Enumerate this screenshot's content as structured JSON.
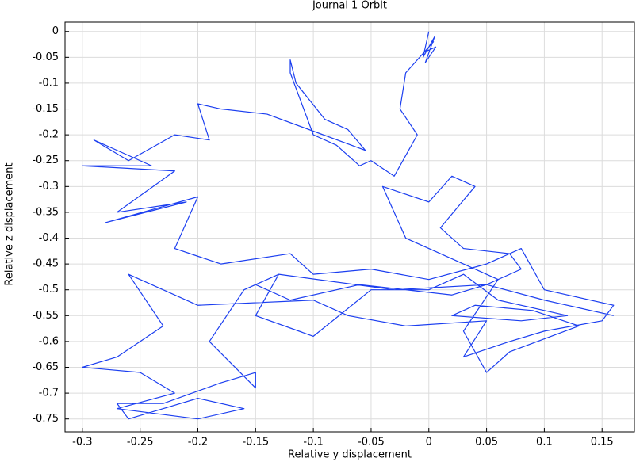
{
  "chart_data": {
    "type": "line",
    "title": "Journal 1 Orbit",
    "x_label": "Relative y displacement",
    "y_label": "Relative z displacement",
    "color": "#1c3ff0",
    "grid": true,
    "xlim": [
      -0.315,
      0.178
    ],
    "ylim": [
      -0.775,
      0.018
    ],
    "xticks": [
      -0.3,
      -0.25,
      -0.2,
      -0.15,
      -0.1,
      -0.05,
      0,
      0.05,
      0.1,
      0.15
    ],
    "yticks": [
      0,
      -0.05,
      -0.1,
      -0.15,
      -0.2,
      -0.25,
      -0.3,
      -0.35,
      -0.4,
      -0.45,
      -0.5,
      -0.55,
      -0.6,
      -0.65,
      -0.7,
      -0.75
    ],
    "x": [
      0,
      -0.005,
      0.005,
      -0.003,
      0.006,
      -0.004,
      0.004,
      -0.02,
      -0.025,
      -0.01,
      -0.03,
      -0.05,
      -0.06,
      -0.08,
      -0.1,
      -0.12,
      -0.12,
      -0.115,
      -0.09,
      -0.07,
      -0.055,
      -0.14,
      -0.18,
      -0.2,
      -0.19,
      -0.22,
      -0.26,
      -0.29,
      -0.24,
      -0.3,
      -0.22,
      -0.27,
      -0.21,
      -0.28,
      -0.2,
      -0.22,
      -0.18,
      -0.12,
      -0.1,
      -0.05,
      0,
      0.05,
      0.08,
      0.1,
      0.16,
      0.15,
      0.1,
      0.07,
      0.03,
      0.05,
      -0.02,
      -0.07,
      -0.1,
      -0.2,
      -0.26,
      -0.23,
      -0.27,
      -0.3,
      -0.25,
      -0.22,
      -0.27,
      -0.2,
      -0.16,
      -0.2,
      -0.26,
      -0.27,
      -0.23,
      -0.18,
      -0.15,
      -0.15,
      -0.19,
      -0.16,
      -0.13,
      -0.15,
      -0.1,
      -0.05,
      0,
      0.03,
      0.06,
      0.12,
      0.08,
      0.02,
      0.04,
      0.09,
      0.13,
      0.07,
      0.05,
      0.03,
      0.06,
      0.02,
      -0.02,
      -0.04,
      0,
      0.02,
      0.04,
      0.01,
      0.03,
      0.07,
      0.08,
      0.05,
      -0.03,
      -0.13,
      -0.15,
      -0.12,
      -0.06,
      0.02,
      0.05,
      0.1,
      0.16
    ],
    "values": [
      0,
      -0.05,
      -0.01,
      -0.06,
      -0.03,
      -0.04,
      -0.02,
      -0.08,
      -0.15,
      -0.2,
      -0.28,
      -0.25,
      -0.26,
      -0.22,
      -0.2,
      -0.08,
      -0.055,
      -0.1,
      -0.17,
      -0.19,
      -0.23,
      -0.16,
      -0.15,
      -0.14,
      -0.21,
      -0.2,
      -0.25,
      -0.21,
      -0.26,
      -0.26,
      -0.27,
      -0.35,
      -0.33,
      -0.37,
      -0.32,
      -0.42,
      -0.45,
      -0.43,
      -0.47,
      -0.46,
      -0.48,
      -0.45,
      -0.42,
      -0.5,
      -0.53,
      -0.56,
      -0.58,
      -0.6,
      -0.63,
      -0.56,
      -0.57,
      -0.55,
      -0.52,
      -0.53,
      -0.47,
      -0.57,
      -0.63,
      -0.65,
      -0.66,
      -0.7,
      -0.73,
      -0.75,
      -0.73,
      -0.71,
      -0.75,
      -0.72,
      -0.72,
      -0.68,
      -0.66,
      -0.69,
      -0.6,
      -0.5,
      -0.47,
      -0.55,
      -0.59,
      -0.5,
      -0.5,
      -0.47,
      -0.52,
      -0.55,
      -0.56,
      -0.55,
      -0.53,
      -0.54,
      -0.57,
      -0.62,
      -0.66,
      -0.58,
      -0.48,
      -0.44,
      -0.4,
      -0.3,
      -0.33,
      -0.28,
      -0.3,
      -0.38,
      -0.42,
      -0.43,
      -0.46,
      -0.49,
      -0.5,
      -0.47,
      -0.49,
      -0.52,
      -0.49,
      -0.51,
      -0.49,
      -0.52,
      -0.55
    ]
  }
}
